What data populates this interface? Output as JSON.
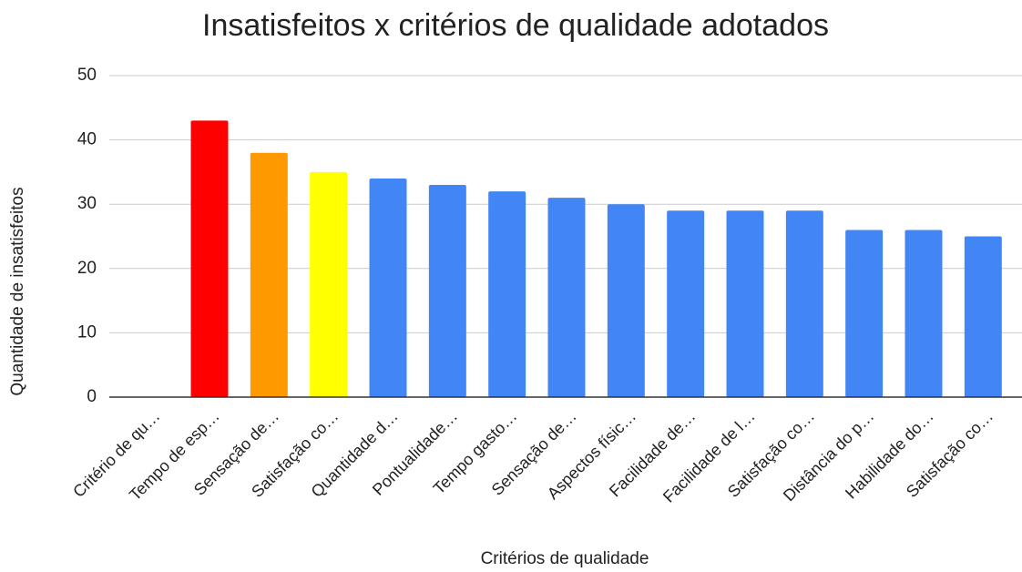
{
  "chart_data": {
    "type": "bar",
    "title": "Insatisfeitos x critérios de qualidade adotados",
    "xlabel": "Critérios de qualidade",
    "ylabel": "Quantidade de insatisfeitos",
    "categories": [
      "Critério de qu…",
      "Tempo de esp…",
      "Sensação de…",
      "Satisfação co…",
      "Quantidade d…",
      "Pontualidade…",
      "Tempo gasto…",
      "Sensação de…",
      "Aspectos físic…",
      "Facilidade de…",
      "Facilidade de l…",
      "Satisfação co…",
      "Distância do p…",
      "Habilidade do…",
      "Satisfação co…"
    ],
    "values": [
      null,
      43,
      38,
      35,
      34,
      33,
      32,
      31,
      30,
      29,
      29,
      29,
      26,
      26,
      25
    ],
    "colors": [
      null,
      "#ff0000",
      "#ff9900",
      "#ffff00",
      "#4285f4",
      "#4285f4",
      "#4285f4",
      "#4285f4",
      "#4285f4",
      "#4285f4",
      "#4285f4",
      "#4285f4",
      "#4285f4",
      "#4285f4",
      "#4285f4"
    ],
    "ylim": [
      0,
      50
    ],
    "yticks": [
      0,
      10,
      20,
      30,
      40,
      50
    ],
    "grid": true
  }
}
